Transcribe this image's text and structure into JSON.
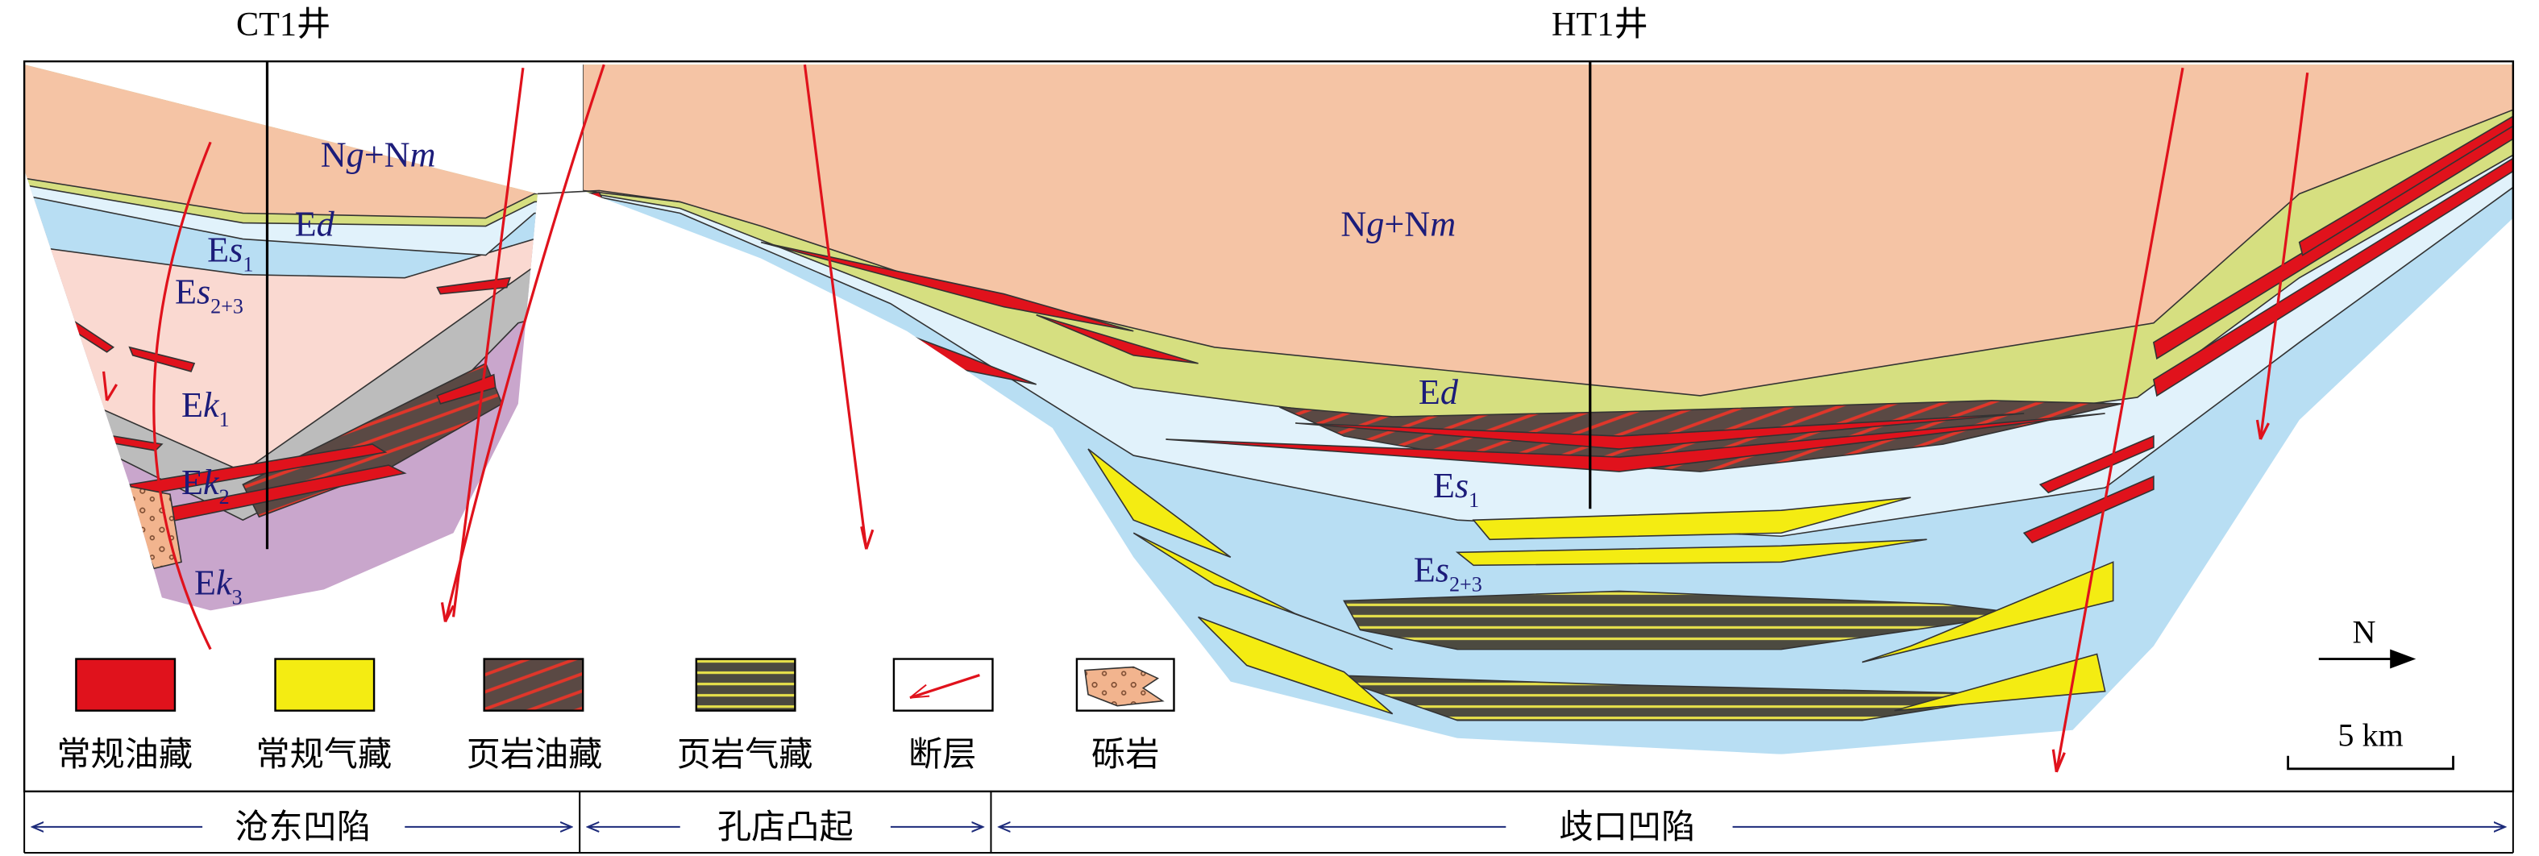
{
  "wells": [
    {
      "label": "CT1井"
    },
    {
      "label": "HT1井"
    }
  ],
  "formations": [
    {
      "parts": [
        {
          "text": "N"
        },
        {
          "text": "g",
          "style": "italic"
        },
        {
          "text": "+N"
        },
        {
          "text": "m",
          "style": "italic"
        }
      ]
    },
    {
      "parts": [
        {
          "text": "E"
        },
        {
          "text": "d",
          "style": "italic"
        }
      ]
    },
    {
      "parts": [
        {
          "text": "E"
        },
        {
          "text": "s",
          "style": "italic"
        },
        {
          "text": "1",
          "style": "sub"
        }
      ]
    },
    {
      "parts": [
        {
          "text": "E"
        },
        {
          "text": "s",
          "style": "italic"
        },
        {
          "text": "2+3",
          "style": "sub"
        }
      ]
    },
    {
      "parts": [
        {
          "text": "E"
        },
        {
          "text": "k",
          "style": "italic"
        },
        {
          "text": "1",
          "style": "sub"
        }
      ]
    },
    {
      "parts": [
        {
          "text": "E"
        },
        {
          "text": "k",
          "style": "italic"
        },
        {
          "text": "2",
          "style": "sub"
        }
      ]
    },
    {
      "parts": [
        {
          "text": "E"
        },
        {
          "text": "k",
          "style": "italic"
        },
        {
          "text": "3",
          "style": "sub"
        }
      ]
    },
    {
      "parts": [
        {
          "text": "N"
        },
        {
          "text": "g",
          "style": "italic"
        },
        {
          "text": "+N"
        },
        {
          "text": "m",
          "style": "italic"
        }
      ]
    },
    {
      "parts": [
        {
          "text": "E"
        },
        {
          "text": "d",
          "style": "italic"
        }
      ]
    },
    {
      "parts": [
        {
          "text": "E"
        },
        {
          "text": "s",
          "style": "italic"
        },
        {
          "text": "1",
          "style": "sub"
        }
      ]
    },
    {
      "parts": [
        {
          "text": "E"
        },
        {
          "text": "s",
          "style": "italic"
        },
        {
          "text": "2+3",
          "style": "sub"
        }
      ]
    }
  ],
  "legend": [
    {
      "label": "常规油藏"
    },
    {
      "label": "常规气藏"
    },
    {
      "label": "页岩油藏"
    },
    {
      "label": "页岩气藏"
    },
    {
      "label": "断层"
    },
    {
      "label": "砾岩"
    }
  ],
  "regions": [
    {
      "label": "沧东凹陷"
    },
    {
      "label": "孔店凸起"
    },
    {
      "label": "歧口凹陷"
    }
  ],
  "north": "N",
  "scale": "5 km"
}
